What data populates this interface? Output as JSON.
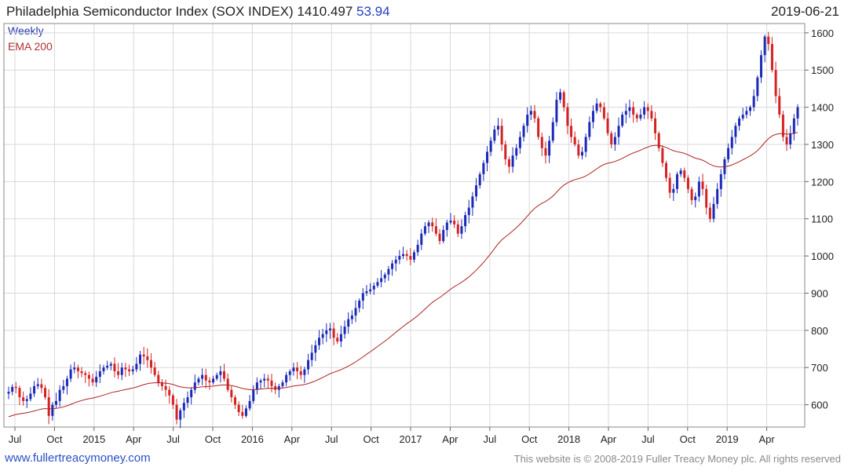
{
  "header": {
    "title": "Philadelphia Semiconductor Index (SOX INDEX) 1410.497",
    "change": "53.94",
    "date": "2019-06-21"
  },
  "legend": {
    "series1": "Weekly",
    "series2": "EMA 200"
  },
  "footer": {
    "link": "www.fullertreacymoney.com",
    "copyright": "This website is © 2008-2019 Fuller Treacy Money plc. All rights reserved"
  },
  "colors": {
    "up": "#1a2ab8",
    "down": "#d42222",
    "ema": "#b02020",
    "grid": "#d9d9d9"
  },
  "chart_data": {
    "type": "candlestick",
    "interval": "weekly",
    "y_ticks": [
      600,
      700,
      800,
      900,
      1000,
      1100,
      1200,
      1300,
      1400,
      1500,
      1600
    ],
    "ylim": [
      540,
      1625
    ],
    "x_ticks": [
      "Jul",
      "Oct",
      "2015",
      "Apr",
      "Jul",
      "Oct",
      "2016",
      "Apr",
      "Jul",
      "Oct",
      "2017",
      "Apr",
      "Jul",
      "Oct",
      "2018",
      "Apr",
      "Jul",
      "Oct",
      "2019",
      "Apr"
    ],
    "weekly_close_series": [
      635,
      648,
      645,
      620,
      610,
      615,
      630,
      650,
      655,
      645,
      620,
      570,
      600,
      610,
      640,
      650,
      670,
      695,
      700,
      690,
      685,
      680,
      670,
      660,
      675,
      690,
      700,
      705,
      710,
      690,
      680,
      700,
      695,
      690,
      695,
      710,
      735,
      730,
      720,
      700,
      680,
      660,
      650,
      640,
      625,
      600,
      560,
      585,
      605,
      620,
      640,
      660,
      670,
      680,
      665,
      660,
      670,
      680,
      690,
      670,
      640,
      620,
      600,
      580,
      570,
      590,
      610,
      640,
      660,
      665,
      670,
      665,
      650,
      640,
      650,
      660,
      680,
      690,
      700,
      690,
      680,
      695,
      720,
      740,
      760,
      780,
      790,
      800,
      805,
      780,
      770,
      790,
      810,
      830,
      840,
      860,
      880,
      900,
      905,
      910,
      920,
      930,
      940,
      950,
      965,
      980,
      990,
      1000,
      1005,
      1000,
      990,
      1010,
      1030,
      1060,
      1080,
      1090,
      1080,
      1060,
      1040,
      1070,
      1090,
      1095,
      1085,
      1060,
      1080,
      1110,
      1130,
      1160,
      1190,
      1220,
      1250,
      1280,
      1310,
      1340,
      1350,
      1300,
      1260,
      1240,
      1270,
      1290,
      1320,
      1350,
      1380,
      1390,
      1370,
      1320,
      1290,
      1270,
      1310,
      1360,
      1420,
      1440,
      1400,
      1350,
      1320,
      1300,
      1270,
      1280,
      1320,
      1360,
      1390,
      1410,
      1400,
      1370,
      1330,
      1300,
      1320,
      1350,
      1380,
      1390,
      1400,
      1380,
      1370,
      1380,
      1400,
      1390,
      1370,
      1330,
      1290,
      1250,
      1210,
      1170,
      1180,
      1220,
      1230,
      1210,
      1180,
      1150,
      1160,
      1200,
      1180,
      1130,
      1100,
      1140,
      1180,
      1220,
      1260,
      1290,
      1320,
      1350,
      1370,
      1380,
      1390,
      1400,
      1430,
      1480,
      1540,
      1590,
      1570,
      1500,
      1430,
      1380,
      1320,
      1300,
      1330,
      1370,
      1400
    ]
  }
}
